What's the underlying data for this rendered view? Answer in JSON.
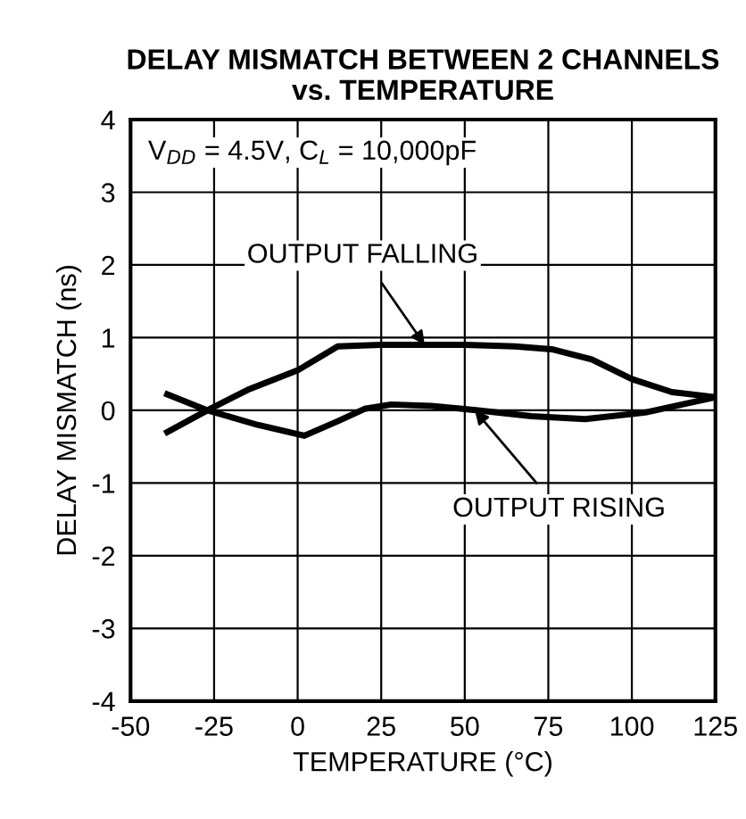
{
  "chart_data": {
    "type": "line",
    "title": "DELAY MISMATCH BETWEEN 2 CHANNELS\nvs. TEMPERATURE",
    "xlabel": "TEMPERATURE (°C)",
    "ylabel": "DELAY MISMATCH (ns)",
    "xlim": [
      -50,
      125
    ],
    "xticks": [
      -50,
      -25,
      0,
      25,
      50,
      75,
      100,
      125
    ],
    "ylim": [
      -4,
      4
    ],
    "yticks": [
      -4,
      -3,
      -2,
      -1,
      0,
      1,
      2,
      3,
      4
    ],
    "grid": true,
    "marker": "none",
    "line_style": "solid",
    "series": [
      {
        "color": "#000000",
        "x": [
          -39,
          -27,
          -15,
          0,
          12,
          25,
          38,
          50,
          65,
          76,
          88,
          100,
          112,
          125
        ],
        "values": [
          -0.3,
          0.0,
          0.28,
          0.55,
          0.88,
          0.9,
          0.9,
          0.9,
          0.88,
          0.84,
          0.7,
          0.43,
          0.25,
          0.18
        ]
      },
      {
        "color": "#000000",
        "x": [
          -39,
          -27,
          -12,
          2,
          12,
          20,
          28,
          40,
          54,
          70,
          86,
          104,
          115,
          125
        ],
        "values": [
          0.22,
          0.0,
          -0.2,
          -0.35,
          -0.15,
          0.02,
          0.08,
          0.06,
          0.0,
          -0.08,
          -0.12,
          -0.03,
          0.08,
          0.18
        ]
      }
    ],
    "annotations": [
      "V$_{DD}$ = 4.5V, C$_{L}$ = 10,000pF",
      {
        "text": "OUTPUT FALLING",
        "x": 38,
        "y": 0.9
      },
      {
        "text": "OUTPUT RISING",
        "x": 53,
        "y": 0.0
      }
    ]
  }
}
